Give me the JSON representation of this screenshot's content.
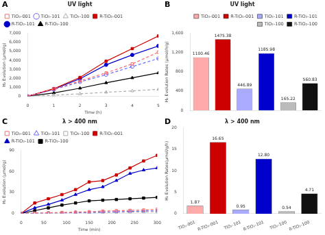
{
  "chart_data": [
    {
      "type": "line",
      "title": "UV light",
      "annotations": [
        "A"
      ],
      "xlabel": "Time (h)",
      "ylabel": "H₂ Evolution (μmol/g)",
      "x": [
        0,
        1,
        2,
        3,
        4,
        5
      ],
      "series": [
        {
          "name": "TiO₂-001",
          "color": "#FF6666",
          "line_style": "dashed",
          "marker": "square_open",
          "values": [
            0,
            800,
            1700,
            2600,
            3600,
            4900
          ]
        },
        {
          "name": "TiO₂-101",
          "color": "#6666FF",
          "line_style": "dashed",
          "marker": "circle_open",
          "values": [
            0,
            750,
            1600,
            2400,
            3300,
            4200
          ]
        },
        {
          "name": "TiO₂-100",
          "color": "#AAAAAA",
          "line_style": "dashed",
          "marker": "triangle_open",
          "values": [
            0,
            120,
            280,
            450,
            600,
            780
          ]
        },
        {
          "name": "R-TiO₂-001",
          "color": "#CC0000",
          "line_style": "solid",
          "marker": "square",
          "values": [
            0,
            850,
            2100,
            3900,
            5300,
            6700
          ]
        },
        {
          "name": "R-TiO₂-101",
          "color": "#0000CC",
          "line_style": "solid",
          "marker": "circle",
          "values": [
            0,
            800,
            1950,
            3500,
            4600,
            5600
          ]
        },
        {
          "name": "R-TiO₂-100",
          "color": "#000000",
          "line_style": "solid",
          "marker": "triangle",
          "values": [
            0,
            380,
            900,
            1500,
            2050,
            2600
          ]
        }
      ],
      "xlim": [
        0,
        5
      ],
      "xticks": [
        0,
        1,
        2,
        3,
        4,
        5
      ],
      "ylim": [
        0,
        7000
      ],
      "yticks": [
        0,
        1000,
        2000,
        3000,
        4000,
        5000,
        6000,
        7000
      ],
      "grid": false,
      "legend": "upper left"
    },
    {
      "type": "bar",
      "title": "UV light",
      "annotations": [
        "B"
      ],
      "ylabel": "H₂ Evolution Rates (μmol/h/g)",
      "categories": [
        "TiO₂-001",
        "R-TiO₂-001",
        "TiO₂-101",
        "R-TiO₂-101",
        "TiO₂-100",
        "R-TiO₂-100"
      ],
      "values": [
        1100.46,
        1475.38,
        446.89,
        1185.98,
        165.22,
        560.83
      ],
      "colors": [
        "#FFAAAA",
        "#CC0000",
        "#AAAAFF",
        "#0000CC",
        "#BBBBBB",
        "#111111"
      ],
      "ylim": [
        0,
        1600
      ],
      "yticks": [
        0,
        400,
        800,
        1200,
        1600
      ],
      "grid": false,
      "legend": "upper right",
      "data_labels": true,
      "tick_labels": "y"
    },
    {
      "type": "line",
      "title": "λ > 400 nm",
      "annotations": [
        "C"
      ],
      "xlabel": "Time (min)",
      "ylabel": "H₂ Evolution (μmol/g)",
      "x": [
        0,
        30,
        60,
        90,
        120,
        150,
        180,
        210,
        240,
        270,
        300
      ],
      "series": [
        {
          "name": "TiO₂-001",
          "color": "#FF6666",
          "line_style": "dashed",
          "marker": "square_open",
          "values": [
            0,
            0.5,
            1,
            1.5,
            2,
            2.5,
            3.5,
            4,
            4.5,
            5,
            6
          ]
        },
        {
          "name": "TiO₂-101",
          "color": "#6666FF",
          "line_style": "dashed",
          "marker": "triangle_open",
          "values": [
            0,
            0.3,
            0.6,
            0.9,
            1.2,
            1.5,
            2,
            2.5,
            3,
            3.5,
            4
          ]
        },
        {
          "name": "TiO₂-100",
          "color": "#AAAAAA",
          "line_style": "dashed",
          "marker": "square_open",
          "values": [
            0,
            0.2,
            0.4,
            0.7,
            1,
            1.2,
            1.5,
            1.8,
            2,
            2.2,
            2.5
          ]
        },
        {
          "name": "R-TiO₂-001",
          "color": "#CC0000",
          "line_style": "solid",
          "marker": "square",
          "values": [
            0,
            15,
            21,
            27,
            34,
            45,
            47,
            55,
            65,
            75,
            83
          ]
        },
        {
          "name": "R-TiO₂-101",
          "color": "#0000CC",
          "line_style": "solid",
          "marker": "triangle",
          "values": [
            0,
            8,
            13,
            19,
            27,
            34,
            38,
            47,
            57,
            62,
            65
          ]
        },
        {
          "name": "R-TiO₂-100",
          "color": "#000000",
          "line_style": "solid",
          "marker": "square",
          "values": [
            0,
            4,
            8,
            12,
            15,
            18,
            19,
            20,
            21,
            22,
            23
          ]
        }
      ],
      "xlim": [
        0,
        300
      ],
      "xticks": [
        0,
        50,
        100,
        150,
        200,
        250,
        300
      ],
      "ylim": [
        0,
        90
      ],
      "yticks": [
        0,
        30,
        60,
        90
      ],
      "grid": false,
      "legend": "upper left"
    },
    {
      "type": "bar",
      "title": "λ > 400 nm",
      "annotations": [
        "D"
      ],
      "ylabel": "H₂ Evolution Rates(μmol/g/h)",
      "categories": [
        "TiO₂-001",
        "R-TiO₂-001",
        "TiO₂-101",
        "R-TiO₂-101",
        "TiO₂-100",
        "R-TiO₂-100"
      ],
      "values": [
        1.87,
        16.65,
        0.95,
        12.8,
        0.54,
        4.71
      ],
      "value_labels": [
        "1.87",
        "16.65",
        "0.95",
        "12.80",
        "0.54",
        "4.71"
      ],
      "colors": [
        "#FFAAAA",
        "#CC0000",
        "#AAAAFF",
        "#0000CC",
        "#BBBBBB",
        "#111111"
      ],
      "ylim": [
        0,
        20
      ],
      "yticks": [
        0,
        5,
        10,
        15,
        20
      ],
      "grid": false,
      "data_labels": true
    }
  ]
}
